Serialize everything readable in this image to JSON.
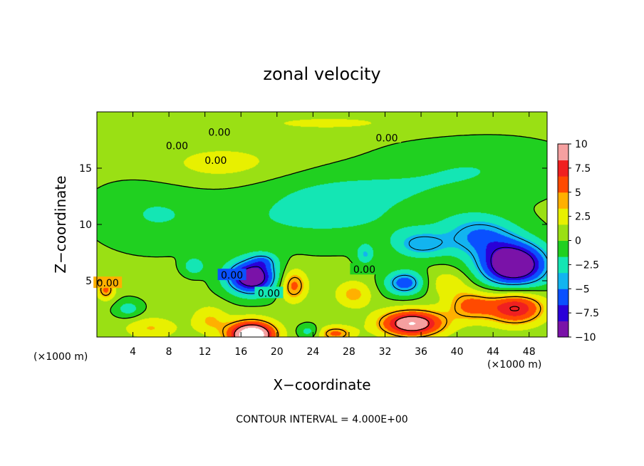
{
  "chart_data": {
    "type": "heatmap",
    "title": "zonal velocity",
    "xlabel": "X−coordinate",
    "ylabel": "Z−coordinate",
    "x_unit_left": "(×1000 m)",
    "x_unit_right": "(×1000 m)",
    "x_range": [
      0,
      50
    ],
    "y_range": [
      0,
      20
    ],
    "x_ticks": [
      4,
      8,
      12,
      16,
      20,
      24,
      28,
      32,
      36,
      40,
      44,
      48
    ],
    "x_tick_labels": [
      "4",
      "8",
      "12",
      "16",
      "20",
      "24",
      "28",
      "32",
      "36",
      "40",
      "44",
      "48"
    ],
    "y_ticks": [
      5,
      10,
      15
    ],
    "y_tick_labels": [
      "5",
      "10",
      "15"
    ],
    "colorbar": {
      "range": [
        -10,
        10
      ],
      "ticks": [
        10,
        7.5,
        5,
        2.5,
        0,
        -2.5,
        -5,
        -7.5,
        -10
      ],
      "tick_labels": [
        "10",
        "7.5",
        "5",
        "2.5",
        "0",
        "−2.5",
        "−5",
        "−7.5",
        "−10"
      ],
      "colors": [
        "#7a12a8",
        "#2a00d8",
        "#0a50ff",
        "#12b4f0",
        "#14e6b4",
        "#20d020",
        "#9ae014",
        "#e8f000",
        "#ffb000",
        "#ff4a00",
        "#f02020",
        "#f5a0a0"
      ]
    },
    "contour_interval_text": "CONTOUR INTERVAL = 4.000E+00",
    "contour_labels": [
      {
        "text": "0.00",
        "x": 13.6,
        "y": 18.2
      },
      {
        "text": "0.00",
        "x": 8.9,
        "y": 17.0
      },
      {
        "text": "0.00",
        "x": 13.2,
        "y": 15.7
      },
      {
        "text": "0.00",
        "x": 32.2,
        "y": 17.7
      },
      {
        "text": "0.00",
        "x": 15.0,
        "y": 5.5
      },
      {
        "text": "0.00",
        "x": 19.1,
        "y": 3.9
      },
      {
        "text": "0.00",
        "x": 29.7,
        "y": 6.0
      },
      {
        "text": "0.00",
        "x": 1.2,
        "y": 4.8
      }
    ],
    "field": {
      "background": 0.4,
      "features": [
        {
          "x": 17.2,
          "z": 5.3,
          "amp": -11,
          "sx": 2.8,
          "sz": 1.5
        },
        {
          "x": 18.5,
          "z": 6.8,
          "amp": -3,
          "sx": 1.5,
          "sz": 0.7
        },
        {
          "x": 10.8,
          "z": 6.3,
          "amp": -3.5,
          "sx": 1.2,
          "sz": 0.8
        },
        {
          "x": 46.3,
          "z": 6.4,
          "amp": -12,
          "sx": 3.8,
          "sz": 2.0
        },
        {
          "x": 42.5,
          "z": 9.0,
          "amp": -5,
          "sx": 4.0,
          "sz": 1.8
        },
        {
          "x": 36.0,
          "z": 8.2,
          "amp": -4.5,
          "sx": 3.0,
          "sz": 1.2
        },
        {
          "x": 34.2,
          "z": 4.8,
          "amp": -6.5,
          "sx": 2.2,
          "sz": 1.1
        },
        {
          "x": 29.8,
          "z": 7.3,
          "amp": -3.5,
          "sx": 1.0,
          "sz": 0.9
        },
        {
          "x": 25.0,
          "z": 10.5,
          "amp": -2.3,
          "sx": 14.0,
          "sz": 2.5
        },
        {
          "x": 6.0,
          "z": 11.0,
          "amp": -1.8,
          "sx": 6.0,
          "sz": 3.0
        },
        {
          "x": 27.0,
          "z": 13.3,
          "amp": -1.7,
          "sx": 12.0,
          "sz": 1.8
        },
        {
          "x": 42.0,
          "z": 15.0,
          "amp": -1.9,
          "sx": 10.0,
          "sz": 2.5
        },
        {
          "x": 14.0,
          "z": 15.2,
          "amp": 2.0,
          "sx": 8.0,
          "sz": 2.0
        },
        {
          "x": 26.0,
          "z": 19.0,
          "amp": 1.5,
          "sx": 12.0,
          "sz": 0.9
        },
        {
          "x": 17.2,
          "z": 0.2,
          "amp": 13,
          "sx": 2.6,
          "sz": 1.2
        },
        {
          "x": 35.0,
          "z": 1.2,
          "amp": 10,
          "sx": 3.6,
          "sz": 1.2
        },
        {
          "x": 46.5,
          "z": 2.6,
          "amp": 8,
          "sx": 3.2,
          "sz": 1.5
        },
        {
          "x": 41.5,
          "z": 2.8,
          "amp": 5,
          "sx": 2.5,
          "sz": 1.3
        },
        {
          "x": 21.8,
          "z": 4.6,
          "amp": 5.5,
          "sx": 1.5,
          "sz": 1.4
        },
        {
          "x": 1.0,
          "z": 4.2,
          "amp": 5,
          "sx": 1.0,
          "sz": 0.9
        },
        {
          "x": 28.5,
          "z": 3.8,
          "amp": 3.5,
          "sx": 2.0,
          "sz": 1.2
        },
        {
          "x": 12.5,
          "z": 1.5,
          "amp": 3,
          "sx": 2.0,
          "sz": 1.3
        },
        {
          "x": 26.5,
          "z": 0.3,
          "amp": 5,
          "sx": 2.0,
          "sz": 0.7
        },
        {
          "x": 6.0,
          "z": 0.8,
          "amp": 3,
          "sx": 3.0,
          "sz": 1.0
        },
        {
          "x": 3.5,
          "z": 2.5,
          "amp": -3,
          "sx": 1.5,
          "sz": 0.8
        },
        {
          "x": 23.5,
          "z": 0.5,
          "amp": -3,
          "sx": 1.2,
          "sz": 0.6
        },
        {
          "x": 39.0,
          "z": 4.8,
          "amp": 2.5,
          "sx": 2.5,
          "sz": 1.2
        }
      ]
    }
  }
}
